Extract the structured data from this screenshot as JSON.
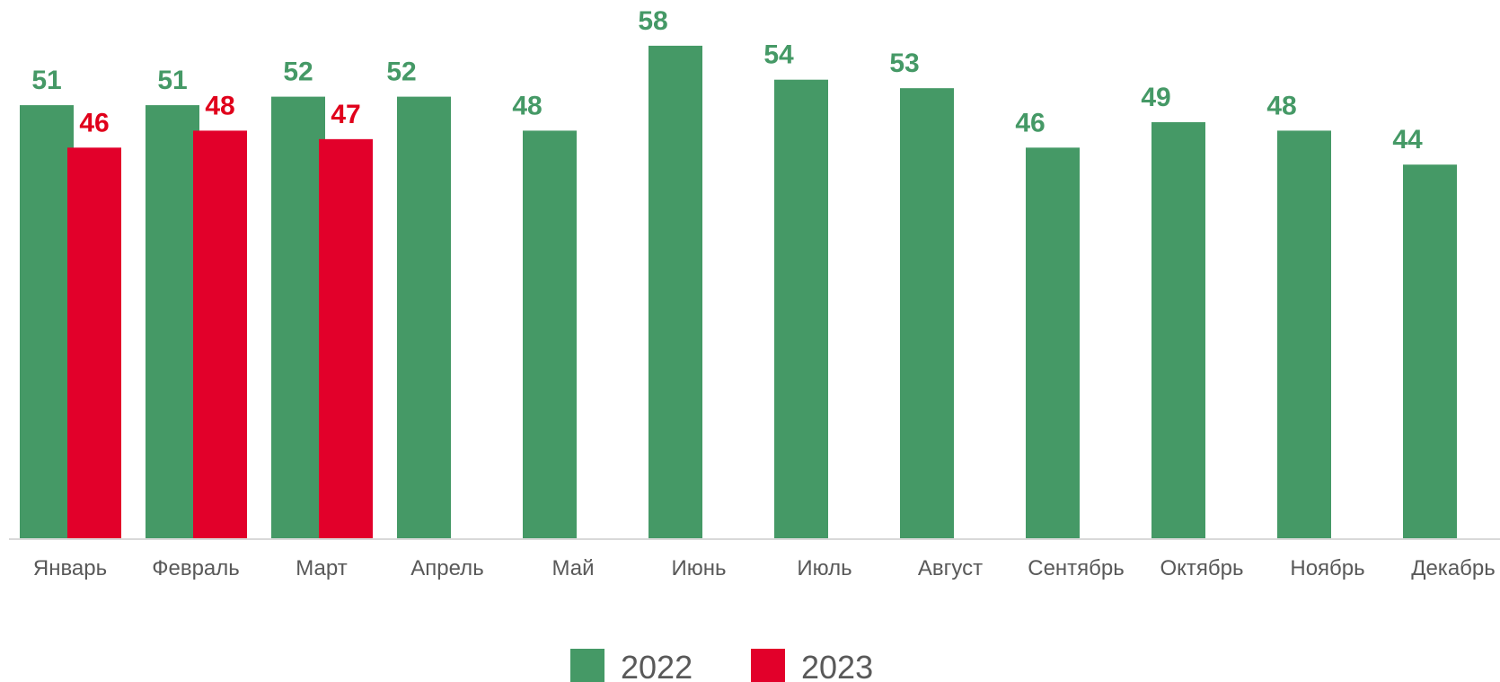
{
  "chart_data": {
    "type": "bar",
    "title": "",
    "xlabel": "",
    "ylabel": "",
    "ylim": [
      0,
      60
    ],
    "grid": false,
    "legend_position": "bottom-center",
    "categories": [
      "Январь",
      "Февраль",
      "Март",
      "Апрель",
      "Май",
      "Июнь",
      "Июль",
      "Август",
      "Сентябрь",
      "Октябрь",
      "Ноябрь",
      "Декабрь"
    ],
    "series": [
      {
        "name": "2022",
        "color": "#459966",
        "values": [
          51,
          51,
          52,
          52,
          48,
          58,
          54,
          53,
          46,
          49,
          48,
          44
        ]
      },
      {
        "name": "2023",
        "color": "#E2002A",
        "label_color": "#E0001B",
        "values": [
          46,
          48,
          47,
          null,
          null,
          null,
          null,
          null,
          null,
          null,
          null,
          null
        ]
      }
    ]
  }
}
